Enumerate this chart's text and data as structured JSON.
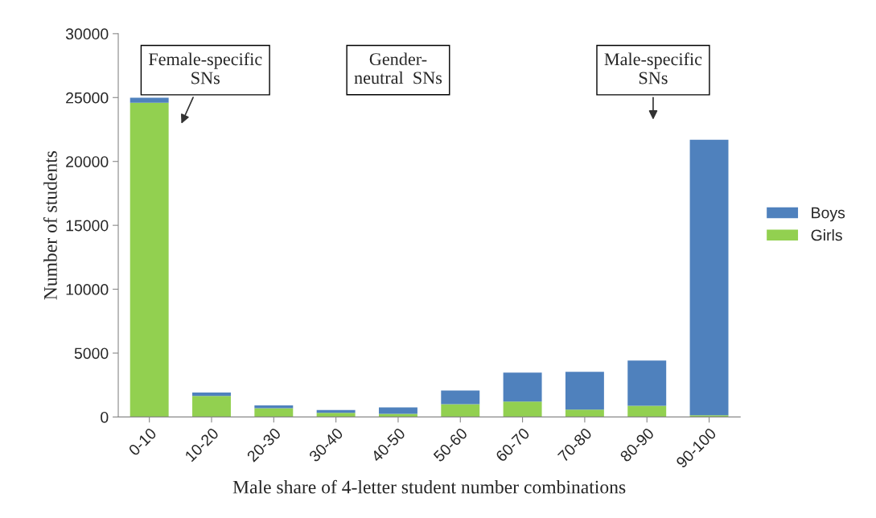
{
  "chart_data": {
    "type": "bar",
    "stacked": true,
    "xlabel": "Male share of 4-letter student number combinations",
    "ylabel": "Number of students",
    "categories": [
      "0-10",
      "10-20",
      "20-30",
      "30-40",
      "40-50",
      "50-60",
      "60-70",
      "70-80",
      "80-90",
      "90-100"
    ],
    "series": [
      {
        "name": "Girls",
        "color": "#92d050",
        "values": [
          24600,
          1640,
          680,
          320,
          250,
          1010,
          1200,
          570,
          880,
          130
        ]
      },
      {
        "name": "Boys",
        "color": "#4f81bd",
        "values": [
          380,
          270,
          220,
          230,
          500,
          1070,
          2270,
          2960,
          3530,
          21570
        ]
      }
    ],
    "ylim": [
      0,
      30000
    ],
    "yticks": [
      0,
      5000,
      10000,
      15000,
      20000,
      25000,
      30000
    ],
    "grid": false,
    "legend": "right",
    "annotations": [
      "Female-specific\nSNs",
      "Gender-\nneutral  SNs",
      "Male-specific\nSNs"
    ]
  }
}
